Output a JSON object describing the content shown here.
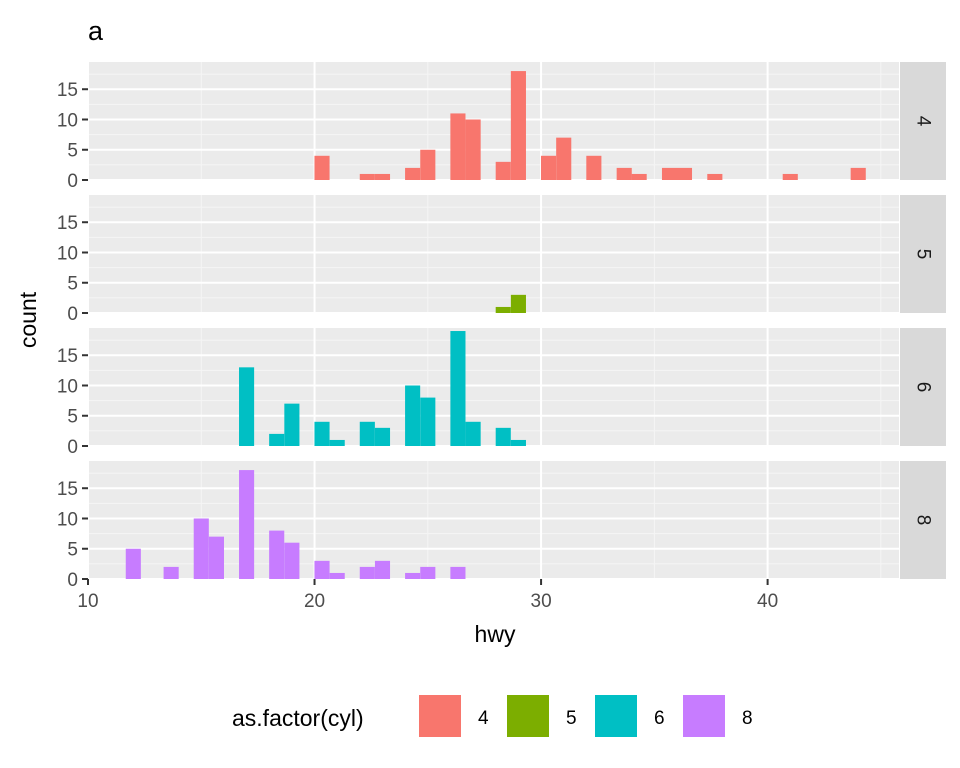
{
  "chart_data": {
    "type": "bar",
    "title": "a",
    "xlabel": "hwy",
    "ylabel": "count",
    "xlim": [
      10,
      45.8
    ],
    "ylim": [
      0,
      19.5
    ],
    "x_ticks": [
      10,
      20,
      30,
      40
    ],
    "y_ticks": [
      0,
      5,
      10,
      15
    ],
    "bin_width": 0.6667,
    "grid": true,
    "legend_position": "bottom",
    "legend_title": "as.factor(cyl)",
    "series": [
      {
        "name": "4",
        "color": "#F8766D",
        "bins": [
          {
            "x": 20.33,
            "count": 4
          },
          {
            "x": 22.33,
            "count": 1
          },
          {
            "x": 23.0,
            "count": 1
          },
          {
            "x": 24.33,
            "count": 2
          },
          {
            "x": 25.0,
            "count": 5
          },
          {
            "x": 26.33,
            "count": 11
          },
          {
            "x": 27.0,
            "count": 10
          },
          {
            "x": 28.33,
            "count": 3
          },
          {
            "x": 29.0,
            "count": 18
          },
          {
            "x": 30.33,
            "count": 4
          },
          {
            "x": 31.0,
            "count": 7
          },
          {
            "x": 32.33,
            "count": 4
          },
          {
            "x": 33.67,
            "count": 2
          },
          {
            "x": 34.33,
            "count": 1
          },
          {
            "x": 35.67,
            "count": 2
          },
          {
            "x": 36.33,
            "count": 2
          },
          {
            "x": 37.67,
            "count": 1
          },
          {
            "x": 41.0,
            "count": 1
          },
          {
            "x": 44.0,
            "count": 2
          }
        ]
      },
      {
        "name": "5",
        "color": "#7CAE00",
        "bins": [
          {
            "x": 28.33,
            "count": 1
          },
          {
            "x": 29.0,
            "count": 3
          }
        ]
      },
      {
        "name": "6",
        "color": "#00BFC4",
        "bins": [
          {
            "x": 17.0,
            "count": 13
          },
          {
            "x": 18.33,
            "count": 2
          },
          {
            "x": 19.0,
            "count": 7
          },
          {
            "x": 20.33,
            "count": 4
          },
          {
            "x": 21.0,
            "count": 1
          },
          {
            "x": 22.33,
            "count": 4
          },
          {
            "x": 23.0,
            "count": 3
          },
          {
            "x": 24.33,
            "count": 10
          },
          {
            "x": 25.0,
            "count": 8
          },
          {
            "x": 26.33,
            "count": 19
          },
          {
            "x": 27.0,
            "count": 4
          },
          {
            "x": 28.33,
            "count": 3
          },
          {
            "x": 29.0,
            "count": 1
          }
        ]
      },
      {
        "name": "8",
        "color": "#C77CFF",
        "bins": [
          {
            "x": 12.0,
            "count": 5
          },
          {
            "x": 13.67,
            "count": 2
          },
          {
            "x": 15.0,
            "count": 10
          },
          {
            "x": 15.67,
            "count": 7
          },
          {
            "x": 17.0,
            "count": 18
          },
          {
            "x": 18.33,
            "count": 8
          },
          {
            "x": 19.0,
            "count": 6
          },
          {
            "x": 20.33,
            "count": 3
          },
          {
            "x": 21.0,
            "count": 1
          },
          {
            "x": 22.33,
            "count": 2
          },
          {
            "x": 23.0,
            "count": 3
          },
          {
            "x": 24.33,
            "count": 1
          },
          {
            "x": 25.0,
            "count": 2
          },
          {
            "x": 26.33,
            "count": 2
          }
        ]
      }
    ]
  }
}
